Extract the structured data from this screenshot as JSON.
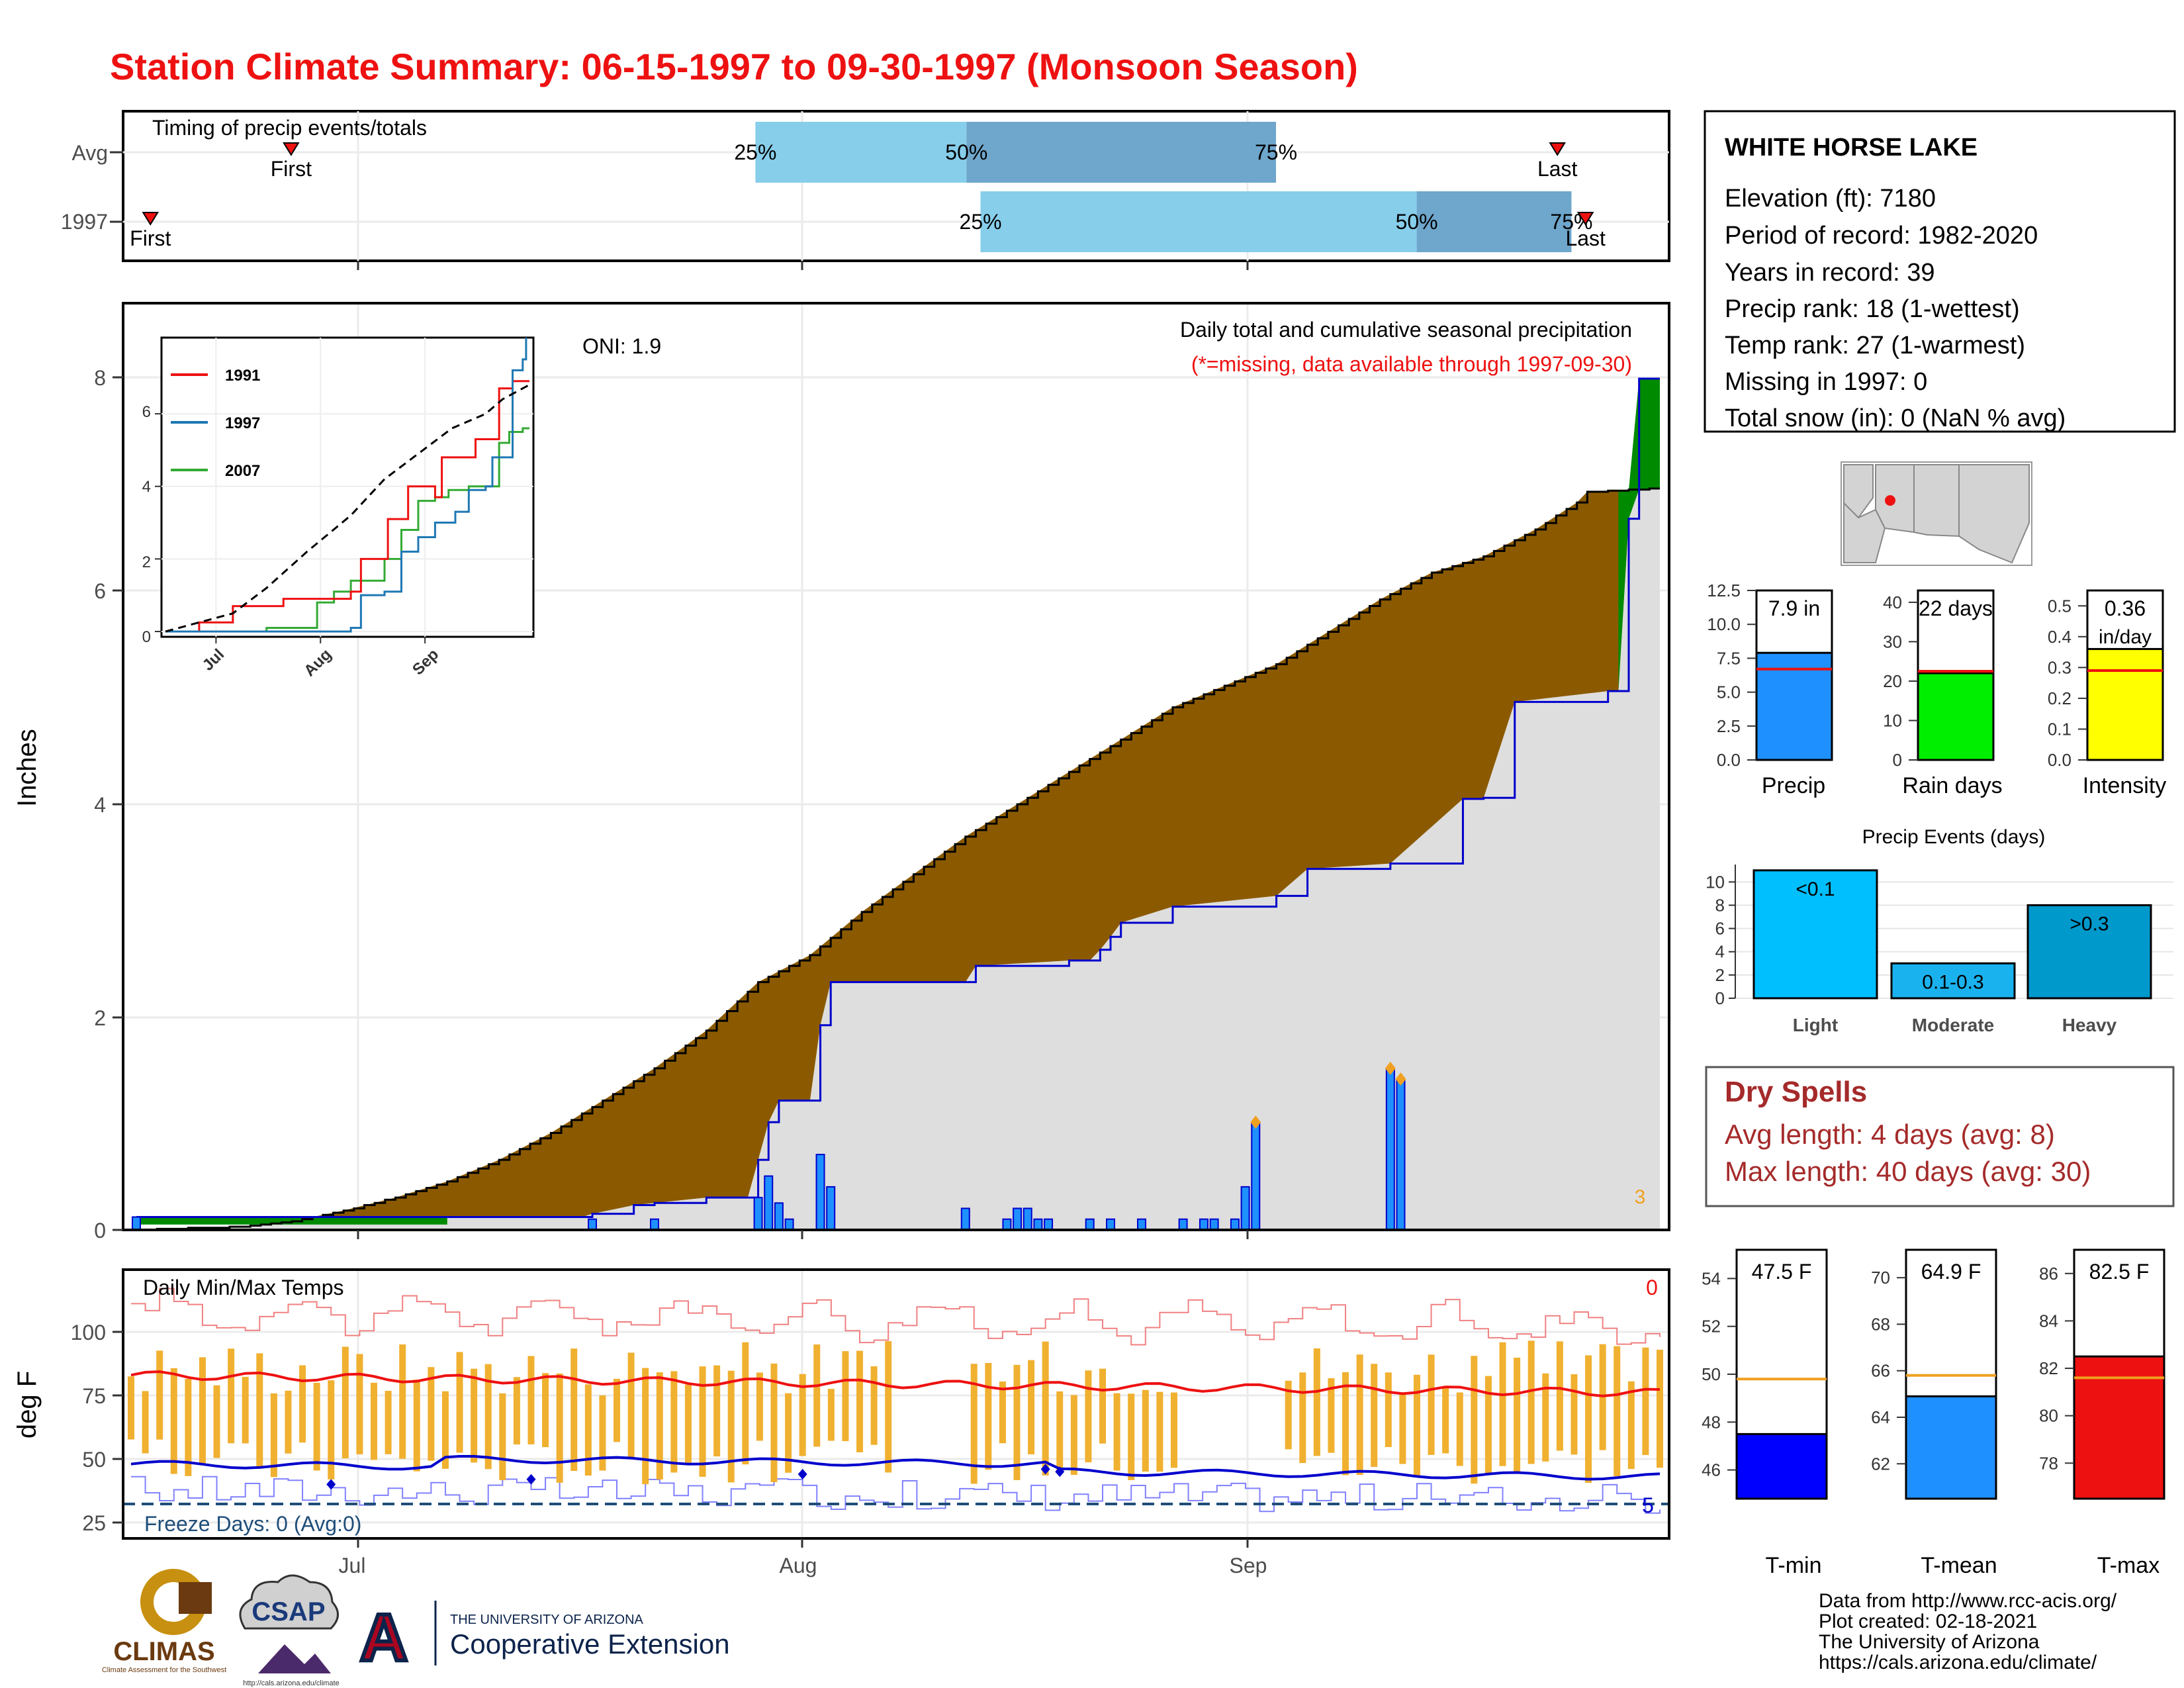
{
  "title": "Station Climate Summary: 06-15-1997 to 09-30-1997 (Monsoon Season)",
  "colors": {
    "title": "#ee1111",
    "light_blue": "#87ceeb",
    "mid_blue": "#6ea6cc",
    "brown": "#8b5a00",
    "green": "#008a00",
    "grey": "#dedede",
    "bar_blue": "#1e90ff",
    "dark_blue": "#0000cc",
    "orange": "#f0a020",
    "yellow": "#ffff00",
    "lime": "#00ee00",
    "cyan": "#00bfff",
    "cyan2": "#1ab2ee",
    "cyan3": "#0099cc",
    "dry_red": "#a52a2a"
  },
  "timing_panel": {
    "title": "Timing of precip events/totals",
    "rows": [
      {
        "label": "Avg",
        "q25_date": "1997-07-29",
        "q50_date": "1997-08-13",
        "q75_date": "1997-09-04",
        "first_date": "1997-06-26",
        "last_date": "1997-09-24",
        "q25": "25%",
        "q50": "50%",
        "q75": "75%",
        "first": "First",
        "last": "Last"
      },
      {
        "label": "1997",
        "q25_date": "1997-08-14",
        "q50_date": "1997-09-14",
        "q75_date": "1997-09-25",
        "first_date": "1997-06-16",
        "last_date": "1997-09-26",
        "q25": "25%",
        "q50": "50%",
        "q75": "75%",
        "first": "First",
        "last": "Last"
      }
    ]
  },
  "precip_panel": {
    "title": "Daily total and cumulative seasonal precipitation",
    "note": "(*=missing, data available through 1997-09-30)",
    "oni": "ONI: 1.9",
    "ylabel": "Inches",
    "corner_count": "3",
    "x_ticks": [
      "Jul",
      "Aug",
      "Sep"
    ],
    "y_ticks": [
      "0",
      "2",
      "4",
      "6",
      "8"
    ]
  },
  "temp_panel": {
    "title": "Daily Min/Max Temps",
    "ylabel": "deg F",
    "freeze": "Freeze Days: 0 (Avg:0)",
    "count_top": "0",
    "count_bottom": "5",
    "x_ticks": [
      "Jul",
      "Aug",
      "Sep"
    ],
    "y_ticks": [
      "25",
      "50",
      "75",
      "100"
    ]
  },
  "station_box": {
    "name": "WHITE HORSE LAKE",
    "lines": [
      "Elevation (ft): 7180",
      "Period of record: 1982-2020",
      "Years in record: 39",
      "Precip rank: 18 (1-wettest)",
      "Temp rank: 27 (1-warmest)",
      "Missing in 1997: 0",
      "Total snow (in): 0 (NaN % avg)"
    ]
  },
  "dry_spells": {
    "title": "Dry Spells",
    "line1": "Avg length: 4 days (avg: 8)",
    "line2": "Max length: 40 days (avg: 30)"
  },
  "events_title": "Precip Events (days)",
  "footer": [
    "Data from http://www.rcc-acis.org/",
    "Plot created: 02-18-2021",
    "The University of Arizona",
    "https://cals.arizona.edu/climate/"
  ],
  "logos": {
    "climas": "CLIMAS",
    "climas_sub": "Climate Assessment for the Southwest",
    "csap": "CSAP",
    "csap_url": "http://cals.arizona.edu/climate",
    "ua_letter": "A",
    "ua_top": "THE UNIVERSITY OF ARIZONA",
    "ua_bottom": "Cooperative Extension"
  },
  "chart_data": [
    {
      "type": "line",
      "name": "inset-cumulative-precip",
      "series": [
        {
          "name": "1991",
          "color": "#ee1111"
        },
        {
          "name": "1997",
          "color": "#1f78b4"
        },
        {
          "name": "2007",
          "color": "#33aa33"
        }
      ],
      "x_ticks": [
        "Jul",
        "Aug",
        "Sep"
      ],
      "y_ticks": [
        "0",
        "2",
        "4",
        "6"
      ],
      "ylim": [
        0,
        8.1
      ],
      "days": 108,
      "red_pts": [
        [
          0,
          0
        ],
        [
          10,
          0.25
        ],
        [
          15,
          0.25
        ],
        [
          20,
          0.7
        ],
        [
          28,
          0.7
        ],
        [
          35,
          0.9
        ],
        [
          48,
          0.9
        ],
        [
          55,
          1.1
        ],
        [
          58,
          2.0
        ],
        [
          62,
          2.0
        ],
        [
          66,
          3.1
        ],
        [
          70,
          3.1
        ],
        [
          72,
          4.0
        ],
        [
          78,
          4.0
        ],
        [
          80,
          3.7
        ],
        [
          82,
          4.8
        ],
        [
          87,
          4.8
        ],
        [
          92,
          5.3
        ],
        [
          97,
          5.3
        ],
        [
          99,
          6.7
        ],
        [
          103,
          6.9
        ],
        [
          108,
          6.9
        ]
      ],
      "blue_pts": [
        [
          0,
          0
        ],
        [
          45,
          0
        ],
        [
          55,
          0.1
        ],
        [
          58,
          1.0
        ],
        [
          65,
          1.1
        ],
        [
          70,
          2.2
        ],
        [
          75,
          2.6
        ],
        [
          80,
          3.0
        ],
        [
          86,
          3.3
        ],
        [
          90,
          3.9
        ],
        [
          95,
          4.0
        ],
        [
          97,
          4.8
        ],
        [
          103,
          4.8
        ],
        [
          103,
          7.2
        ],
        [
          106,
          7.5
        ],
        [
          107,
          8.1
        ]
      ],
      "green_pts": [
        [
          0,
          0
        ],
        [
          30,
          0.1
        ],
        [
          44,
          0.1
        ],
        [
          45,
          0.8
        ],
        [
          50,
          1.1
        ],
        [
          55,
          1.4
        ],
        [
          62,
          1.4
        ],
        [
          65,
          2.0
        ],
        [
          70,
          2.8
        ],
        [
          75,
          3.6
        ],
        [
          80,
          3.7
        ],
        [
          84,
          3.9
        ],
        [
          90,
          4.0
        ],
        [
          98,
          4.0
        ],
        [
          99,
          5.2
        ],
        [
          102,
          5.5
        ],
        [
          105,
          5.5
        ],
        [
          106,
          5.6
        ],
        [
          108,
          5.6
        ]
      ],
      "avg_pts": [
        [
          0,
          0
        ],
        [
          20,
          0.5
        ],
        [
          30,
          1.2
        ],
        [
          42,
          2.2
        ],
        [
          55,
          3.2
        ],
        [
          65,
          4.2
        ],
        [
          75,
          4.9
        ],
        [
          85,
          5.6
        ],
        [
          95,
          6.0
        ],
        [
          100,
          6.4
        ],
        [
          108,
          6.8
        ]
      ]
    },
    {
      "type": "area",
      "name": "cumulative-and-daily-precip",
      "days": 108,
      "start_date": "1997-06-15",
      "ylim": [
        0,
        8.6
      ],
      "avg_cum_pts": [
        [
          0,
          0
        ],
        [
          10,
          0.03
        ],
        [
          15,
          0.08
        ],
        [
          20,
          0.18
        ],
        [
          25,
          0.3
        ],
        [
          30,
          0.45
        ],
        [
          35,
          0.65
        ],
        [
          40,
          0.9
        ],
        [
          45,
          1.2
        ],
        [
          50,
          1.5
        ],
        [
          55,
          1.85
        ],
        [
          60,
          2.3
        ],
        [
          65,
          2.55
        ],
        [
          70,
          2.95
        ],
        [
          75,
          3.3
        ],
        [
          80,
          3.65
        ],
        [
          85,
          3.95
        ],
        [
          90,
          4.25
        ],
        [
          95,
          4.55
        ],
        [
          100,
          4.85
        ],
        [
          105,
          5.05
        ],
        [
          110,
          5.25
        ],
        [
          115,
          5.55
        ],
        [
          120,
          5.85
        ],
        [
          125,
          6.1
        ],
        [
          130,
          6.25
        ],
        [
          135,
          6.5
        ],
        [
          139,
          6.75
        ],
        [
          140,
          6.85
        ],
        [
          147,
          6.88
        ]
      ],
      "obs_cum_pts": [
        [
          0,
          0.12
        ],
        [
          43,
          0.12
        ],
        [
          44,
          0.15
        ],
        [
          48,
          0.23
        ],
        [
          50,
          0.25
        ],
        [
          55,
          0.3
        ],
        [
          59,
          0.3
        ],
        [
          60,
          0.65
        ],
        [
          61,
          1.0
        ],
        [
          62,
          1.2
        ],
        [
          65,
          1.2
        ],
        [
          66,
          1.9
        ],
        [
          67,
          2.3
        ],
        [
          80,
          2.3
        ],
        [
          81,
          2.45
        ],
        [
          90,
          2.5
        ],
        [
          92,
          2.5
        ],
        [
          93,
          2.6
        ],
        [
          94,
          2.72
        ],
        [
          95,
          2.85
        ],
        [
          100,
          3.0
        ],
        [
          110,
          3.1
        ],
        [
          113,
          3.35
        ],
        [
          121,
          3.4
        ],
        [
          128,
          4.0
        ],
        [
          130,
          4.01
        ],
        [
          133,
          4.9
        ],
        [
          142,
          5.0
        ],
        [
          143,
          5.0
        ],
        [
          144,
          6.6
        ],
        [
          145,
          7.9
        ],
        [
          147,
          7.9
        ]
      ],
      "bars": [
        [
          0,
          0.12
        ],
        [
          44,
          0.1
        ],
        [
          50,
          0.1
        ],
        [
          60,
          0.3
        ],
        [
          61,
          0.5
        ],
        [
          62,
          0.25
        ],
        [
          63,
          0.1
        ],
        [
          66,
          0.7
        ],
        [
          67,
          0.4
        ],
        [
          80,
          0.2
        ],
        [
          84,
          0.1
        ],
        [
          85,
          0.2
        ],
        [
          86,
          0.2
        ],
        [
          87,
          0.1
        ],
        [
          88,
          0.1
        ],
        [
          92,
          0.1
        ],
        [
          94,
          0.1
        ],
        [
          97,
          0.1
        ],
        [
          101,
          0.1
        ],
        [
          103,
          0.1
        ],
        [
          104,
          0.1
        ],
        [
          106,
          0.1
        ],
        [
          107,
          0.4
        ],
        [
          108,
          1.0
        ],
        [
          121,
          1.5
        ],
        [
          122,
          1.4
        ]
      ]
    },
    {
      "type": "bar",
      "name": "daily-temps",
      "days": 108,
      "ylim": [
        20,
        122
      ],
      "avg_max_start": 83,
      "avg_max_end": 76,
      "avg_min_start": 48,
      "avg_min_end": 43
    },
    {
      "type": "bar",
      "name": "precip-summary",
      "categories": [
        "Precip",
        "Rain days",
        "Intensity"
      ],
      "values": [
        7.9,
        22,
        0.36
      ],
      "averages": [
        6.7,
        22.5,
        0.29
      ],
      "ylims": [
        12.5,
        43.0,
        0.55
      ],
      "ticks": [
        [
          "0.0",
          "2.5",
          "5.0",
          "7.5",
          "10.0",
          "12.5"
        ],
        [
          "0",
          "10",
          "20",
          "30",
          "40"
        ],
        [
          "0.0",
          "0.1",
          "0.2",
          "0.3",
          "0.4",
          "0.5"
        ]
      ],
      "labels": [
        "7.9 in",
        "22 days",
        "0.36"
      ],
      "sublabel": "in/day"
    },
    {
      "type": "bar",
      "name": "precip-events",
      "title": "Precip Events (days)",
      "categories": [
        "Light",
        "Moderate",
        "Heavy"
      ],
      "values": [
        11,
        3,
        8
      ],
      "labels": [
        "<0.1",
        "0.1-0.3",
        ">0.3"
      ],
      "ylim": [
        0,
        11.5
      ],
      "y_ticks": [
        "0",
        "2",
        "4",
        "6",
        "8",
        "10"
      ]
    },
    {
      "type": "bar",
      "name": "temp-summary",
      "categories": [
        "T-min",
        "T-mean",
        "T-max"
      ],
      "values": [
        47.5,
        64.9,
        82.5
      ],
      "averages": [
        49.8,
        65.8,
        81.6
      ],
      "labels": [
        "47.5 F",
        "64.9 F",
        "82.5 F"
      ],
      "ranges": [
        [
          44.8,
          55.2
        ],
        [
          60.5,
          71.2
        ],
        [
          76.5,
          87.0
        ]
      ],
      "ticks": [
        [
          "46",
          "48",
          "50",
          "52",
          "54"
        ],
        [
          "62",
          "64",
          "66",
          "68",
          "70"
        ],
        [
          "78",
          "80",
          "82",
          "84",
          "86"
        ]
      ]
    }
  ]
}
